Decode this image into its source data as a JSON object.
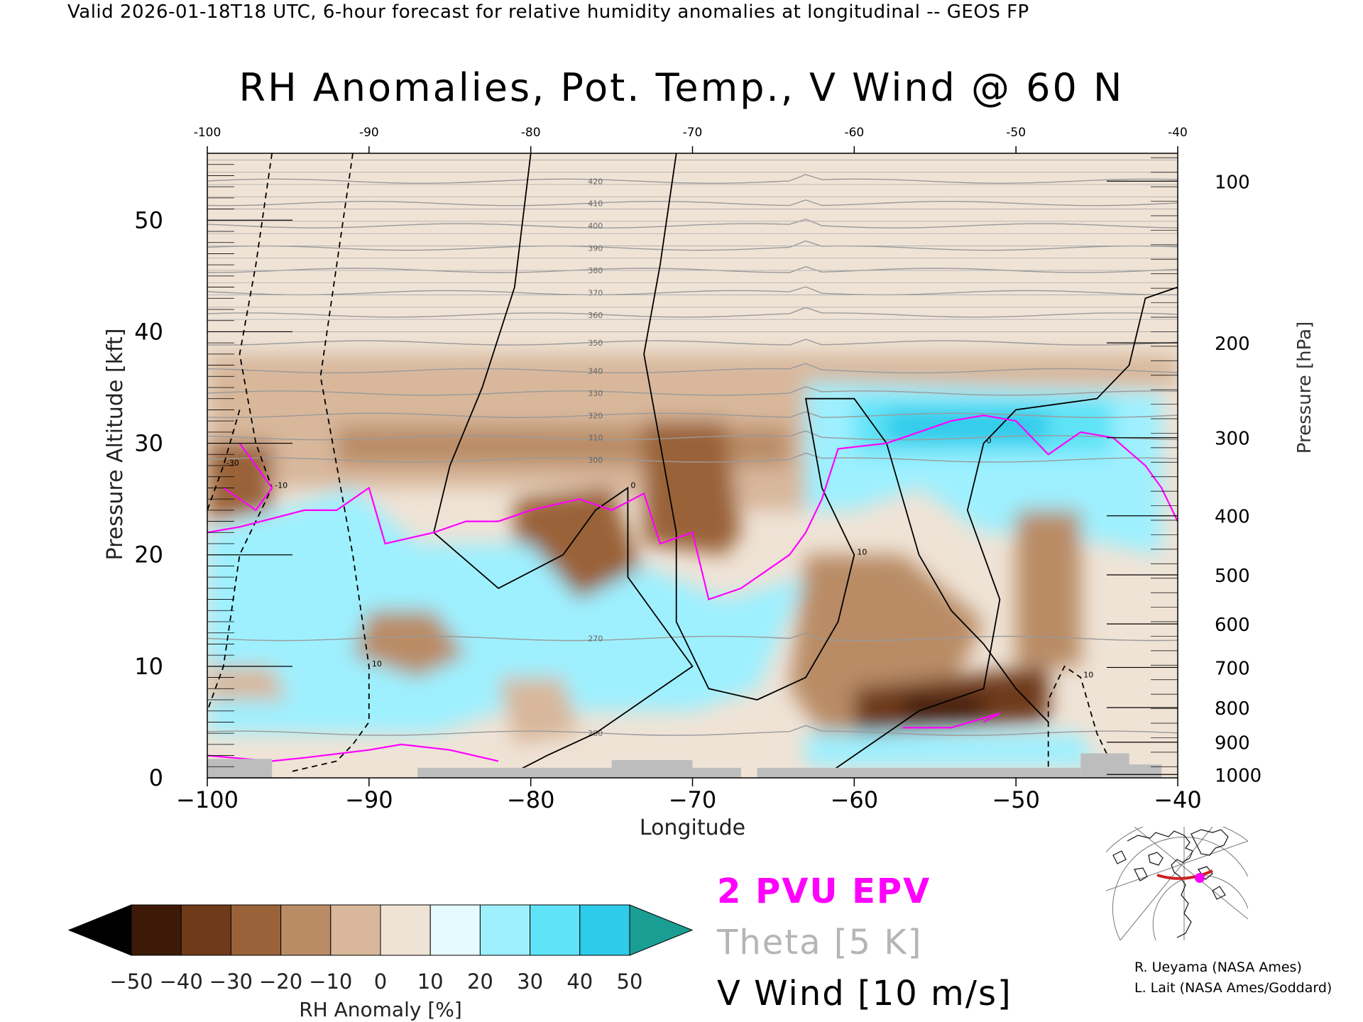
{
  "header": {
    "valid_line": "Valid 2026-01-18T18 UTC, 6-hour forecast for relative humidity anomalies at longitudinal -- GEOS FP",
    "title": "RH Anomalies, Pot. Temp., V Wind @ 60 N"
  },
  "legend": {
    "epv": "2 PVU EPV",
    "theta": "Theta [5 K]",
    "wind": "V Wind [10 m/s]"
  },
  "credits": {
    "line1": "R. Ueyama (NASA Ames)",
    "line2": "L. Lait (NASA Ames/Goddard)"
  },
  "colors": {
    "epv": "#ff00ff",
    "theta": "#9a9a9a",
    "wind": "#000000",
    "terrain": "#bdbdbd",
    "track": "#cc0000"
  },
  "chart_data": {
    "type": "heatmap",
    "title": "RH Anomalies, Pot. Temp., V Wind @ 60 N",
    "xlabel": "Longitude",
    "ylabel_left": "Pressure Altitude [kft]",
    "ylabel_right": "Pressure [hPa]",
    "xlim": [
      -100,
      -40
    ],
    "ylim": [
      0,
      56
    ],
    "x_ticks": [
      -100,
      -90,
      -80,
      -70,
      -60,
      -50,
      -40
    ],
    "x_tick_labels": [
      "−100",
      "−90",
      "−80",
      "−70",
      "−60",
      "−50",
      "−40"
    ],
    "top_x_tick_labels": [
      "-100",
      "-90",
      "-80",
      "-70",
      "-60",
      "-50",
      "-40"
    ],
    "y_ticks": [
      0,
      10,
      20,
      30,
      40,
      50
    ],
    "y_tick_labels": [
      "0",
      "10",
      "20",
      "30",
      "40",
      "50"
    ],
    "pressure_ticks": [
      {
        "kft": 53.5,
        "label": "100"
      },
      {
        "kft": 39.0,
        "label": "200"
      },
      {
        "kft": 30.5,
        "label": "300"
      },
      {
        "kft": 23.5,
        "label": "400"
      },
      {
        "kft": 18.2,
        "label": "500"
      },
      {
        "kft": 13.8,
        "label": "600"
      },
      {
        "kft": 9.9,
        "label": "700"
      },
      {
        "kft": 6.3,
        "label": "800"
      },
      {
        "kft": 3.2,
        "label": "900"
      },
      {
        "kft": 0.3,
        "label": "1000"
      }
    ],
    "colorbar": {
      "label": "RH Anomaly [%]",
      "levels": [
        -50,
        -40,
        -30,
        -20,
        -10,
        0,
        10,
        20,
        30,
        40,
        50
      ],
      "tick_labels": [
        "−50",
        "−40",
        "−30",
        "−20",
        "−10",
        "0",
        "10",
        "20",
        "30",
        "40",
        "50"
      ],
      "colors": [
        "#000000",
        "#3d1a08",
        "#6e3a1a",
        "#9a6238",
        "#b98c66",
        "#d8b79b",
        "#efe3d6",
        "#e5fbff",
        "#9ef0ff",
        "#5fe3f7",
        "#2ecbea",
        "#0aa3cd",
        "#07799f",
        "#1a9e94"
      ]
    },
    "rh_regions": [
      {
        "value": 3,
        "points": [
          [
            -100,
            0
          ],
          [
            -100,
            56
          ],
          [
            -40,
            56
          ],
          [
            -40,
            0
          ]
        ]
      },
      {
        "value": -8,
        "points": [
          [
            -100,
            38
          ],
          [
            -40,
            38
          ],
          [
            -40,
            35
          ],
          [
            -63,
            35
          ],
          [
            -63,
            24
          ],
          [
            -66,
            24
          ],
          [
            -70,
            24
          ],
          [
            -76,
            26
          ],
          [
            -100,
            26
          ]
        ]
      },
      {
        "value": -20,
        "points": [
          [
            -92,
            31.5
          ],
          [
            -64,
            31.5
          ],
          [
            -64,
            28
          ],
          [
            -92,
            28
          ]
        ]
      },
      {
        "value": -25,
        "points": [
          [
            -100,
            30
          ],
          [
            -96,
            30
          ],
          [
            -96,
            24
          ],
          [
            -100,
            23
          ]
        ]
      },
      {
        "value": -30,
        "points": [
          [
            -73,
            32
          ],
          [
            -68,
            32
          ],
          [
            -67,
            22
          ],
          [
            -68,
            20
          ],
          [
            -73,
            21
          ]
        ]
      },
      {
        "value": -25,
        "points": [
          [
            -81,
            25
          ],
          [
            -75,
            26
          ],
          [
            -73,
            18
          ],
          [
            -77,
            16
          ],
          [
            -81,
            18
          ]
        ]
      },
      {
        "value": 20,
        "points": [
          [
            -100,
            22
          ],
          [
            -91,
            26
          ],
          [
            -87,
            21
          ],
          [
            -80,
            21
          ],
          [
            -77,
            16
          ],
          [
            -73,
            19
          ],
          [
            -68,
            16
          ],
          [
            -63,
            18
          ],
          [
            -66,
            8
          ],
          [
            -70,
            6
          ],
          [
            -82,
            6
          ],
          [
            -86,
            4
          ],
          [
            -92,
            4
          ],
          [
            -100,
            4
          ]
        ]
      },
      {
        "value": 20,
        "points": [
          [
            -63,
            35.5
          ],
          [
            -41,
            34.5
          ],
          [
            -41,
            20
          ],
          [
            -48,
            22
          ],
          [
            -52,
            22
          ],
          [
            -56,
            26
          ],
          [
            -60,
            24
          ],
          [
            -63,
            24
          ]
        ]
      },
      {
        "value": 38,
        "points": [
          [
            -60,
            34
          ],
          [
            -44,
            34
          ],
          [
            -44,
            29
          ],
          [
            -60,
            29
          ]
        ]
      },
      {
        "value": 45,
        "points": [
          [
            -58,
            33
          ],
          [
            -48,
            33
          ],
          [
            -48,
            30
          ],
          [
            -58,
            30
          ]
        ]
      },
      {
        "value": -15,
        "points": [
          [
            -90,
            15
          ],
          [
            -86,
            15
          ],
          [
            -84,
            11
          ],
          [
            -87,
            9
          ],
          [
            -91,
            11
          ]
        ]
      },
      {
        "value": -10,
        "points": [
          [
            -100,
            10
          ],
          [
            -96,
            10
          ],
          [
            -95,
            7
          ],
          [
            -100,
            7
          ]
        ]
      },
      {
        "value": -10,
        "points": [
          [
            -82,
            9
          ],
          [
            -78,
            9
          ],
          [
            -77,
            4
          ],
          [
            -81,
            3
          ]
        ]
      },
      {
        "value": -15,
        "points": [
          [
            -63,
            20
          ],
          [
            -57,
            20
          ],
          [
            -52,
            14
          ],
          [
            -55,
            5
          ],
          [
            -62,
            4
          ],
          [
            -64,
            8
          ]
        ]
      },
      {
        "value": -20,
        "points": [
          [
            -50,
            24
          ],
          [
            -46,
            24
          ],
          [
            -46,
            10
          ],
          [
            -50,
            10
          ]
        ]
      },
      {
        "value": -35,
        "points": [
          [
            -60,
            8
          ],
          [
            -48,
            10
          ],
          [
            -48,
            5
          ],
          [
            -60,
            4
          ]
        ]
      },
      {
        "value": -50,
        "points": [
          [
            -57,
            7.3
          ],
          [
            -52,
            7.3
          ],
          [
            -52,
            5.3
          ],
          [
            -57,
            5.3
          ]
        ]
      },
      {
        "value": 20,
        "points": [
          [
            -63,
            4
          ],
          [
            -46,
            4
          ],
          [
            -45,
            1
          ],
          [
            -63,
            1
          ]
        ]
      }
    ],
    "theta_contours": [
      {
        "label": "270",
        "kft": 12.5
      },
      {
        "label": "280",
        "kft": 4.0
      },
      {
        "label": "300",
        "kft": 28.5
      },
      {
        "label": "310",
        "kft": 30.5
      },
      {
        "label": "320",
        "kft": 32.5
      },
      {
        "label": "330",
        "kft": 34.5
      },
      {
        "label": "340",
        "kft": 36.5
      },
      {
        "label": "350",
        "kft": 39.0
      },
      {
        "label": "360",
        "kft": 41.5
      },
      {
        "label": "370",
        "kft": 43.5
      },
      {
        "label": "380",
        "kft": 45.5
      },
      {
        "label": "390",
        "kft": 47.5
      },
      {
        "label": "400",
        "kft": 49.5
      },
      {
        "label": "410",
        "kft": 51.5
      },
      {
        "label": "420",
        "kft": 53.5
      }
    ],
    "epv_2pvu": [
      {
        "points": [
          [
            -100,
            22
          ],
          [
            -98,
            22.5
          ],
          [
            -94,
            24
          ],
          [
            -92,
            24
          ],
          [
            -90,
            26
          ],
          [
            -89,
            21
          ],
          [
            -86,
            22
          ],
          [
            -84,
            23
          ],
          [
            -82,
            23
          ],
          [
            -80,
            24
          ],
          [
            -77,
            25
          ],
          [
            -75,
            24
          ],
          [
            -73,
            25.5
          ],
          [
            -72,
            21
          ],
          [
            -70,
            22
          ],
          [
            -69,
            16
          ],
          [
            -67,
            17
          ],
          [
            -64,
            20
          ],
          [
            -63,
            22
          ],
          [
            -62,
            25
          ],
          [
            -61,
            29.5
          ],
          [
            -58,
            30
          ],
          [
            -54,
            32
          ],
          [
            -52,
            32.5
          ],
          [
            -50,
            32
          ],
          [
            -48,
            29
          ],
          [
            -46,
            31
          ],
          [
            -44,
            30.5
          ],
          [
            -42,
            28
          ],
          [
            -41,
            26
          ],
          [
            -40,
            23
          ]
        ]
      },
      {
        "points": [
          [
            -98,
            30
          ],
          [
            -96,
            26
          ],
          [
            -97,
            24
          ],
          [
            -99,
            26
          ]
        ]
      },
      {
        "points": [
          [
            -100,
            2
          ],
          [
            -96,
            1.5
          ],
          [
            -94,
            1.8
          ],
          [
            -90,
            2.5
          ],
          [
            -88,
            3
          ],
          [
            -85,
            2.5
          ],
          [
            -82,
            1.5
          ]
        ]
      },
      {
        "points": [
          [
            -57,
            4.5
          ],
          [
            -54,
            4.5
          ],
          [
            -51,
            5.8
          ],
          [
            -52,
            5
          ]
        ]
      }
    ],
    "vwind_contours": [
      {
        "label": "0",
        "style": "solid",
        "points": [
          [
            -80,
            56
          ],
          [
            -81,
            44
          ],
          [
            -83,
            35
          ],
          [
            -85,
            28
          ],
          [
            -86,
            22
          ],
          [
            -82,
            17
          ],
          [
            -78,
            20
          ],
          [
            -76,
            24
          ],
          [
            -74,
            26
          ],
          [
            -74,
            18
          ],
          [
            -72,
            14
          ],
          [
            -70,
            10
          ],
          [
            -72,
            8
          ],
          [
            -74,
            6
          ],
          [
            -76,
            4
          ],
          [
            -79,
            2
          ],
          [
            -81,
            0.5
          ]
        ]
      },
      {
        "label": "10",
        "style": "solid",
        "points": [
          [
            -71,
            56
          ],
          [
            -72,
            46
          ],
          [
            -73,
            38
          ],
          [
            -72,
            30
          ],
          [
            -71,
            22
          ],
          [
            -71,
            14
          ],
          [
            -69,
            8
          ],
          [
            -66,
            7
          ],
          [
            -63,
            9
          ],
          [
            -61,
            14
          ],
          [
            -60,
            20
          ],
          [
            -62,
            26
          ],
          [
            -63,
            34
          ],
          [
            -60,
            34
          ],
          [
            -58,
            30
          ],
          [
            -57,
            25
          ],
          [
            -56,
            20
          ],
          [
            -54,
            15
          ],
          [
            -52,
            12
          ],
          [
            -50,
            8
          ],
          [
            -48,
            5
          ]
        ]
      },
      {
        "label": "0",
        "style": "solid",
        "points": [
          [
            -62,
            0
          ],
          [
            -59,
            3
          ],
          [
            -56,
            6
          ],
          [
            -52,
            8
          ],
          [
            -51,
            16
          ],
          [
            -53,
            24
          ],
          [
            -52,
            30
          ],
          [
            -50,
            33
          ],
          [
            -45,
            34
          ],
          [
            -43,
            37
          ],
          [
            -42,
            43
          ],
          [
            -40,
            44
          ]
        ]
      },
      {
        "label": "10",
        "style": "dashed",
        "points": [
          [
            -91,
            56
          ],
          [
            -92,
            46
          ],
          [
            -93,
            36
          ],
          [
            -92,
            28
          ],
          [
            -91,
            20
          ],
          [
            -90,
            10
          ],
          [
            -90,
            5
          ],
          [
            -91,
            3
          ],
          [
            -92,
            1.5
          ],
          [
            -95,
            0.5
          ]
        ]
      },
      {
        "label": "-10",
        "style": "dashed",
        "points": [
          [
            -96,
            56
          ],
          [
            -97,
            46
          ],
          [
            -98,
            38
          ],
          [
            -97,
            30
          ],
          [
            -96,
            26
          ],
          [
            -98,
            20
          ],
          [
            -99,
            10
          ],
          [
            -100,
            6
          ]
        ]
      },
      {
        "label": "-30",
        "style": "dashed",
        "points": [
          [
            -98,
            33
          ],
          [
            -99,
            28
          ],
          [
            -100,
            24
          ]
        ]
      },
      {
        "label": "10",
        "style": "dashed",
        "points": [
          [
            -48,
            1
          ],
          [
            -48,
            7
          ],
          [
            -47,
            10
          ],
          [
            -46,
            9
          ],
          [
            -45,
            4
          ],
          [
            -44,
            1
          ]
        ]
      }
    ],
    "terrain": [
      {
        "x0": -100,
        "x1": -96,
        "kft": 1.7
      },
      {
        "x0": -87,
        "x1": -67,
        "kft": 0.9
      },
      {
        "x0": -75,
        "x1": -70,
        "kft": 1.6
      },
      {
        "x0": -66,
        "x1": -61,
        "kft": 0.9
      },
      {
        "x0": -61,
        "x1": -46,
        "kft": 0.9
      },
      {
        "x0": -46,
        "x1": -43,
        "kft": 2.2
      },
      {
        "x0": -43,
        "x1": -41,
        "kft": 1.2
      }
    ]
  }
}
